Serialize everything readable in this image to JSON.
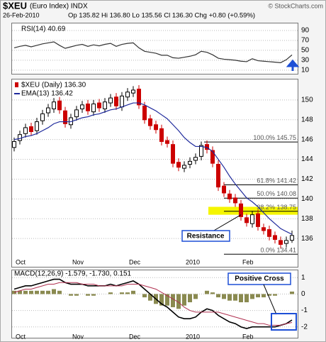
{
  "header": {
    "symbol": "$XEU",
    "name": "(Euro Index) INDX",
    "date": "26-Feb-2010",
    "quote": "Op 135.82 Hi 136.80 Lo 135.56 Cl 136.30 Chg +0.80 (+0.59%)",
    "credit": "© StockCharts.com"
  },
  "chart_data": [
    {
      "type": "line",
      "series": [
        {
          "name": "RSI(14) 40.69",
          "color": "#333333",
          "values": [
            55,
            58,
            60,
            57,
            60,
            63,
            65,
            67,
            60,
            54,
            57,
            60,
            62,
            58,
            61,
            59,
            62,
            64,
            58,
            62,
            64,
            65,
            55,
            48,
            46,
            44,
            40,
            40,
            35,
            34,
            36,
            38,
            41,
            48,
            46,
            41,
            34,
            32,
            31,
            30,
            28,
            27,
            33,
            29,
            28,
            27,
            26,
            25,
            31,
            40.69
          ]
        }
      ],
      "ylim": [
        4,
        100
      ],
      "yticks": [
        10,
        30,
        50,
        70,
        90
      ],
      "grid": true
    },
    {
      "type": "candlestick",
      "categories": [
        "Oct",
        null,
        null,
        null,
        null,
        null,
        null,
        null,
        null,
        null,
        "Nov",
        null,
        null,
        null,
        null,
        null,
        null,
        null,
        null,
        null,
        "Dec",
        null,
        null,
        null,
        null,
        null,
        null,
        null,
        null,
        null,
        "2010",
        null,
        null,
        null,
        null,
        null,
        null,
        null,
        null,
        null,
        "Feb",
        null,
        null,
        null,
        null,
        null,
        null,
        null,
        null,
        null
      ],
      "name": "$XEU (Daily) 136.30",
      "up_color": "#000000",
      "down_color": "#cc0000",
      "open": [
        145.2,
        145.9,
        146.6,
        147.3,
        146.9,
        147.9,
        148.7,
        149.1,
        149.9,
        148.9,
        147.5,
        148.3,
        149.1,
        149.6,
        148.8,
        149.7,
        149.1,
        149.7,
        150.3,
        149.3,
        150.3,
        150.7,
        151.1,
        149.4,
        148.1,
        147.5,
        147.1,
        145.9,
        145.5,
        143.7,
        143.1,
        143.5,
        143.9,
        144.3,
        145.5,
        144.9,
        143.5,
        141.3,
        140.5,
        140.1,
        139.5,
        138.1,
        137.5,
        138.5,
        137.1,
        136.9,
        136.3,
        135.8,
        135.5,
        135.82
      ],
      "high": [
        146.2,
        146.9,
        147.6,
        147.7,
        148.2,
        149.0,
        149.6,
        150.2,
        150.3,
        149.3,
        148.6,
        149.4,
        149.9,
        150.0,
        150.0,
        150.1,
        150.2,
        150.6,
        150.7,
        150.8,
        151.2,
        151.4,
        151.5,
        149.8,
        148.5,
        147.9,
        147.5,
        146.3,
        145.9,
        144.1,
        143.8,
        144.2,
        144.6,
        145.8,
        145.9,
        145.3,
        143.9,
        141.7,
        140.9,
        140.5,
        139.9,
        138.5,
        138.8,
        138.9,
        137.5,
        137.3,
        136.7,
        136.2,
        136.2,
        136.8
      ],
      "low": [
        144.8,
        145.5,
        146.2,
        146.4,
        146.5,
        147.5,
        148.3,
        148.7,
        148.6,
        147.2,
        147.1,
        147.9,
        148.7,
        148.5,
        148.4,
        148.8,
        148.7,
        149.3,
        149.0,
        148.9,
        149.9,
        150.3,
        149.1,
        147.6,
        147.0,
        146.6,
        145.4,
        145.2,
        143.2,
        142.8,
        142.7,
        143.1,
        143.5,
        143.9,
        144.6,
        143.2,
        140.8,
        140.2,
        139.6,
        139.2,
        137.8,
        137.2,
        137.1,
        136.8,
        136.4,
        135.8,
        135.5,
        135.0,
        135.1,
        135.56
      ],
      "close": [
        145.8,
        146.5,
        147.2,
        146.8,
        147.8,
        148.6,
        149.2,
        149.8,
        149.0,
        147.6,
        148.2,
        149.0,
        149.5,
        148.9,
        149.6,
        149.2,
        149.8,
        150.2,
        149.4,
        150.4,
        150.8,
        151.0,
        149.5,
        148.0,
        147.4,
        147.0,
        145.8,
        145.6,
        143.6,
        143.2,
        143.4,
        143.8,
        144.2,
        145.4,
        145.0,
        143.6,
        141.2,
        140.6,
        140.0,
        139.6,
        138.2,
        137.6,
        138.4,
        137.2,
        136.8,
        136.2,
        135.9,
        135.4,
        135.8,
        136.3
      ],
      "series": [
        {
          "name": "EMA(13) 136.42",
          "color": "#1f2a9c",
          "values": [
            146.0,
            146.1,
            146.3,
            146.4,
            146.6,
            146.9,
            147.2,
            147.6,
            147.8,
            147.8,
            147.8,
            148.0,
            148.2,
            148.3,
            148.5,
            148.6,
            148.8,
            149.0,
            149.1,
            149.3,
            149.5,
            149.7,
            149.7,
            149.5,
            149.2,
            148.9,
            148.5,
            148.1,
            147.5,
            146.9,
            146.2,
            145.7,
            145.3,
            145.3,
            145.2,
            144.8,
            144.0,
            143.2,
            142.3,
            141.5,
            140.8,
            140.1,
            139.7,
            139.2,
            138.6,
            138.0,
            137.5,
            137.0,
            136.7,
            136.42
          ]
        }
      ],
      "fib_levels": [
        {
          "level": "100.0%",
          "value": 145.75
        },
        {
          "level": "61.8%",
          "value": 141.42
        },
        {
          "level": "50.0%",
          "value": 140.08
        },
        {
          "level": "38.2%",
          "value": 138.75
        },
        {
          "level": "0.0%",
          "value": 134.41
        }
      ],
      "resistance": {
        "label": "Resistance",
        "range": [
          138.4,
          139.2
        ]
      },
      "ylim": [
        134,
        152
      ],
      "yticks": [
        136,
        138,
        140,
        142,
        144,
        146,
        148,
        150
      ],
      "grid": true
    },
    {
      "type": "macd",
      "name": "MACD(12,26,9) -1.579, -1.730, 0.151",
      "annotation": "Positive Cross",
      "series": [
        {
          "name": "MACD",
          "color": "#000000",
          "values": [
            0.3,
            0.4,
            0.5,
            0.5,
            0.6,
            0.7,
            0.8,
            0.9,
            0.9,
            0.7,
            0.6,
            0.6,
            0.6,
            0.5,
            0.5,
            0.5,
            0.5,
            0.6,
            0.5,
            0.6,
            0.7,
            0.8,
            0.6,
            0.3,
            0.0,
            -0.3,
            -0.6,
            -0.8,
            -1.1,
            -1.4,
            -1.5,
            -1.5,
            -1.4,
            -1.1,
            -0.9,
            -1.0,
            -1.3,
            -1.5,
            -1.7,
            -1.8,
            -2.0,
            -2.1,
            -2.0,
            -2.0,
            -2.0,
            -2.0,
            -2.0,
            -1.9,
            -1.8,
            -1.579
          ]
        },
        {
          "name": "Signal",
          "color": "#b03050",
          "values": [
            0.1,
            0.2,
            0.3,
            0.3,
            0.4,
            0.5,
            0.6,
            0.6,
            0.7,
            0.7,
            0.7,
            0.7,
            0.6,
            0.6,
            0.6,
            0.5,
            0.5,
            0.5,
            0.5,
            0.5,
            0.6,
            0.6,
            0.6,
            0.5,
            0.4,
            0.3,
            0.1,
            -0.1,
            -0.3,
            -0.5,
            -0.8,
            -1.0,
            -1.1,
            -1.1,
            -1.1,
            -1.1,
            -1.1,
            -1.2,
            -1.3,
            -1.4,
            -1.5,
            -1.6,
            -1.7,
            -1.8,
            -1.8,
            -1.9,
            -1.9,
            -1.9,
            -1.8,
            -1.73
          ]
        }
      ],
      "histogram": {
        "color": "#8a8a50",
        "values": [
          0.2,
          0.2,
          0.2,
          0.2,
          0.2,
          0.2,
          0.2,
          0.3,
          0.2,
          0.0,
          -0.1,
          -0.1,
          0.0,
          -0.1,
          -0.1,
          0.0,
          0.0,
          0.1,
          0.0,
          0.1,
          0.1,
          0.2,
          0.0,
          -0.2,
          -0.4,
          -0.6,
          -0.7,
          -0.7,
          -0.8,
          -0.9,
          -0.7,
          -0.5,
          -0.3,
          0.0,
          0.2,
          0.1,
          -0.2,
          -0.3,
          -0.4,
          -0.4,
          -0.5,
          -0.5,
          -0.3,
          -0.2,
          -0.2,
          -0.1,
          -0.1,
          0.0,
          0.0,
          0.151
        ]
      },
      "ylim": [
        -2.4,
        1.4
      ],
      "yticks": [
        -2,
        -1,
        0,
        1
      ],
      "grid": true
    }
  ]
}
